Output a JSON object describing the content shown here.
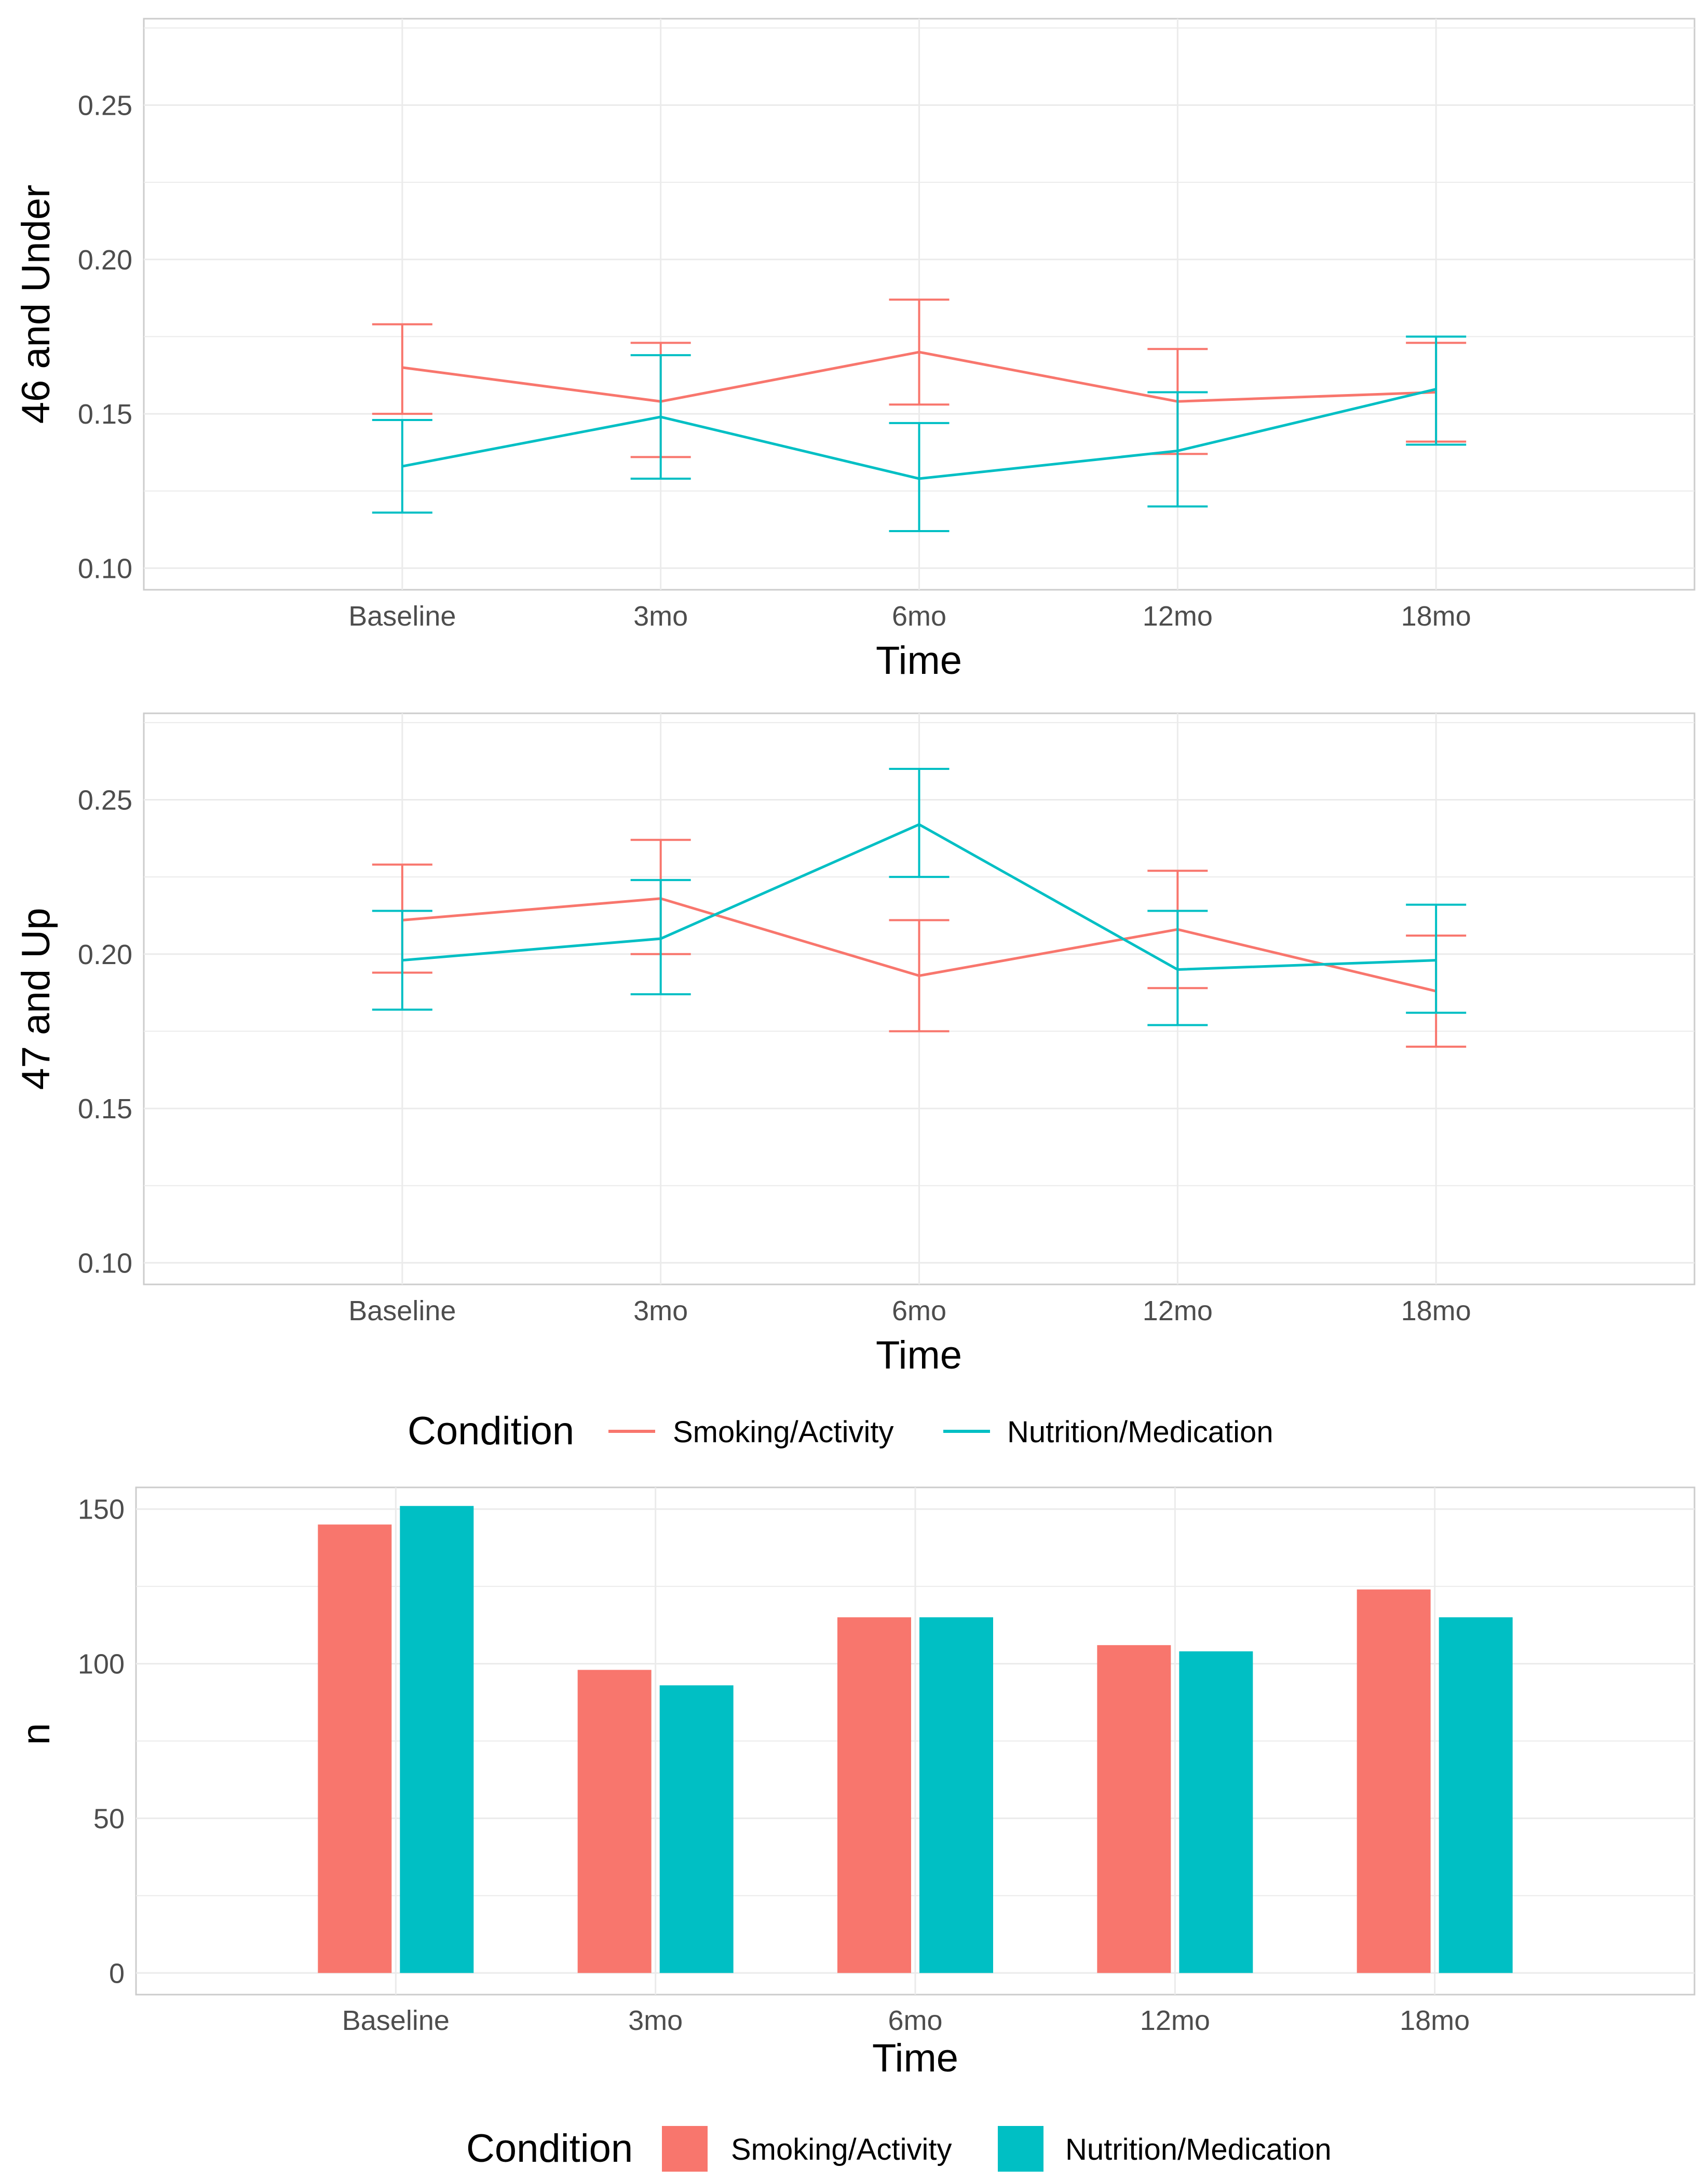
{
  "colors": {
    "smoking": "#F8766D",
    "nutrition": "#00BFC4",
    "grid": "#EBEBEB",
    "panel_border": "#CCCCCC",
    "tick_text": "#4D4D4D"
  },
  "chart_data": [
    {
      "id": "under46",
      "type": "line",
      "title": "",
      "xlabel": "Time",
      "ylabel": "46 and Under",
      "categories": [
        "Baseline",
        "3mo",
        "6mo",
        "12mo",
        "18mo"
      ],
      "ylim": [
        0.093,
        0.278
      ],
      "yticks": [
        0.1,
        0.15,
        0.2,
        0.25
      ],
      "ytick_labels": [
        "0.10",
        "0.15",
        "0.20",
        "0.25"
      ],
      "series": [
        {
          "name": "Smoking/Activity",
          "color": "#F8766D",
          "values": [
            0.165,
            0.154,
            0.17,
            0.154,
            0.157
          ],
          "lower": [
            0.15,
            0.136,
            0.153,
            0.137,
            0.141
          ],
          "upper": [
            0.179,
            0.173,
            0.187,
            0.171,
            0.173
          ]
        },
        {
          "name": "Nutrition/Medication",
          "color": "#00BFC4",
          "values": [
            0.133,
            0.149,
            0.129,
            0.138,
            0.158
          ],
          "lower": [
            0.118,
            0.129,
            0.112,
            0.12,
            0.14
          ],
          "upper": [
            0.148,
            0.169,
            0.147,
            0.157,
            0.175
          ]
        }
      ]
    },
    {
      "id": "over47",
      "type": "line",
      "title": "",
      "xlabel": "Time",
      "ylabel": "47 and Up",
      "categories": [
        "Baseline",
        "3mo",
        "6mo",
        "12mo",
        "18mo"
      ],
      "ylim": [
        0.093,
        0.278
      ],
      "yticks": [
        0.1,
        0.15,
        0.2,
        0.25
      ],
      "ytick_labels": [
        "0.10",
        "0.15",
        "0.20",
        "0.25"
      ],
      "series": [
        {
          "name": "Smoking/Activity",
          "color": "#F8766D",
          "values": [
            0.211,
            0.218,
            0.193,
            0.208,
            0.188
          ],
          "lower": [
            0.194,
            0.2,
            0.175,
            0.189,
            0.17
          ],
          "upper": [
            0.229,
            0.237,
            0.211,
            0.227,
            0.206
          ]
        },
        {
          "name": "Nutrition/Medication",
          "color": "#00BFC4",
          "values": [
            0.198,
            0.205,
            0.242,
            0.195,
            0.198
          ],
          "lower": [
            0.182,
            0.187,
            0.225,
            0.177,
            0.181
          ],
          "upper": [
            0.214,
            0.224,
            0.26,
            0.214,
            0.216
          ]
        }
      ]
    },
    {
      "id": "counts",
      "type": "bar",
      "title": "",
      "xlabel": "Time",
      "ylabel": "n",
      "categories": [
        "Baseline",
        "3mo",
        "6mo",
        "12mo",
        "18mo"
      ],
      "ylim": [
        -7,
        157
      ],
      "yticks": [
        0,
        50,
        100,
        150
      ],
      "ytick_labels": [
        "0",
        "50",
        "100",
        "150"
      ],
      "series": [
        {
          "name": "Smoking/Activity",
          "color": "#F8766D",
          "values": [
            145,
            98,
            115,
            106,
            124
          ]
        },
        {
          "name": "Nutrition/Medication",
          "color": "#00BFC4",
          "values": [
            151,
            93,
            115,
            104,
            115
          ]
        }
      ]
    }
  ],
  "legends": {
    "lines": {
      "title": "Condition",
      "items": [
        {
          "label": "Smoking/Activity",
          "color": "#F8766D"
        },
        {
          "label": "Nutrition/Medication",
          "color": "#00BFC4"
        }
      ]
    },
    "bars": {
      "title": "Condition",
      "items": [
        {
          "label": "Smoking/Activity",
          "color": "#F8766D"
        },
        {
          "label": "Nutrition/Medication",
          "color": "#00BFC4"
        }
      ]
    }
  }
}
